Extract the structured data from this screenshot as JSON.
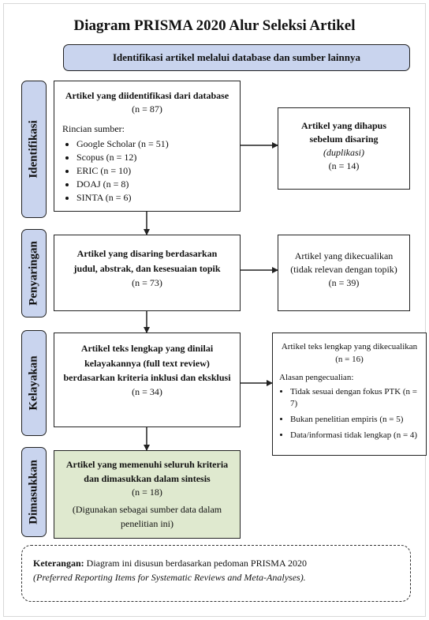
{
  "title": "Diagram PRISMA 2020 Alur Seleksi Artikel",
  "top_banner": "Identifikasi artikel melalui database dan sumber lainnya",
  "stages": [
    {
      "label": "Identifikasi"
    },
    {
      "label": "Penyaringan"
    },
    {
      "label": "Kelayakan"
    },
    {
      "label": "Dimasukkan"
    }
  ],
  "identification": {
    "main": {
      "title": "Artikel yang diidentifikasi dari database",
      "count": "(n = 87)",
      "sources_heading": "Rincian sumber:",
      "sources": [
        "Google Scholar (n = 51)",
        "Scopus (n = 12)",
        "ERIC (n = 10)",
        "DOAJ (n = 8)",
        "SINTA (n = 6)"
      ]
    },
    "removed": {
      "title": "Artikel yang dihapus sebelum disaring",
      "note": "(duplikasi)",
      "count": "(n = 14)"
    }
  },
  "screening": {
    "main": {
      "title": "Artikel yang disaring berdasarkan judul, abstrak, dan kesesuaian topik",
      "count": "(n = 73)"
    },
    "excluded": {
      "title": "Artikel yang dikecualikan",
      "note": "(tidak relevan dengan topik)",
      "count": "(n = 39)"
    }
  },
  "eligibility": {
    "main": {
      "title": "Artikel teks lengkap yang dinilai kelayakannya (full text review) berdasarkan kriteria inklusi dan eksklusi",
      "count": "(n = 34)"
    },
    "excluded": {
      "title": "Artikel teks lengkap yang dikecualikan",
      "count": "(n = 16)",
      "reasons_heading": "Alasan pengecualian:",
      "reasons": [
        "Tidak sesuai dengan fokus PTK (n = 7)",
        "Bukan penelitian empiris (n = 5)",
        "Data/informasi tidak lengkap (n = 4)"
      ]
    }
  },
  "included": {
    "title": "Artikel yang memenuhi seluruh kriteria dan dimasukkan dalam sintesis",
    "count": "(n = 18)",
    "note": "(Digunakan sebagai sumber data dalam penelitian ini)"
  },
  "legend": {
    "label": "Keterangan:",
    "text": " Diagram ini disusun berdasarkan pedoman PRISMA 2020",
    "subtext": "(Preferred Reporting Items for Systematic Reviews and Meta-Analyses)."
  },
  "colors": {
    "stage_fill": "#c9d4ee",
    "included_fill": "#dfe9cf",
    "border": "#222222"
  }
}
